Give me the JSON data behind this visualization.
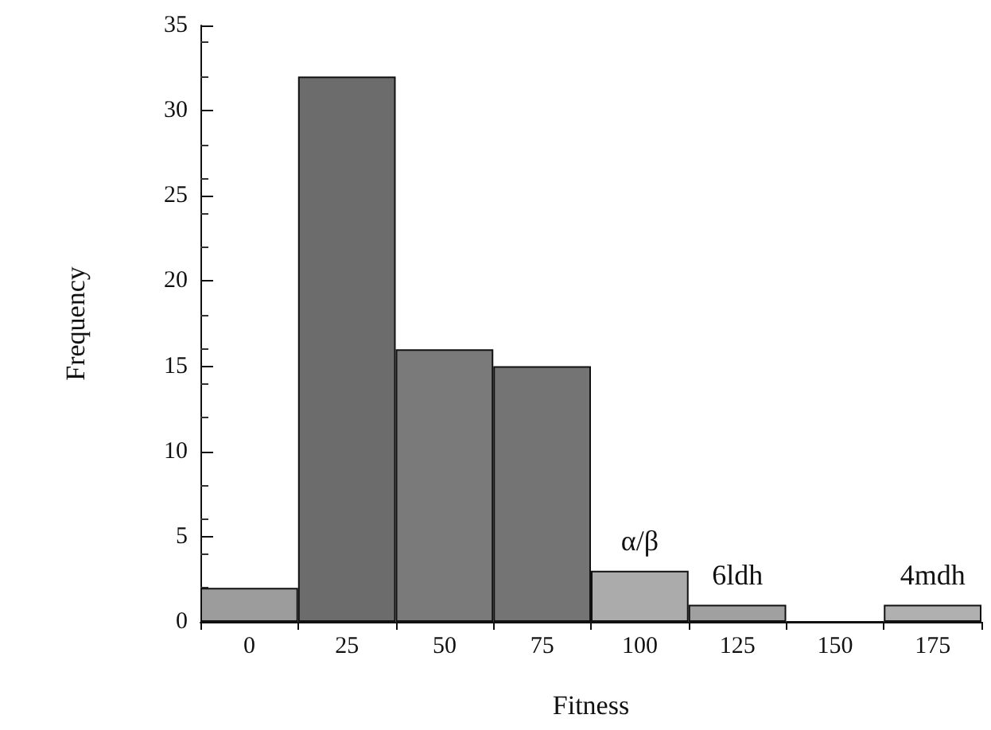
{
  "chart_data": {
    "type": "bar",
    "xlabel": "Fitness",
    "ylabel": "Frequency",
    "categories": [
      "0",
      "25",
      "50",
      "75",
      "100",
      "125",
      "150",
      "175"
    ],
    "values": [
      2,
      32,
      16,
      15,
      3,
      1,
      0,
      1
    ],
    "colors": [
      "#9c9c9c",
      "#6c6c6c",
      "#7a7a7a",
      "#747474",
      "#ababab",
      "#a0a0a0",
      "#a0a0a0",
      "#b0b0b0"
    ],
    "ylim": [
      0,
      35
    ],
    "yticks": [
      0,
      5,
      10,
      15,
      20,
      25,
      30,
      35
    ],
    "annotations": [
      {
        "text": "α/β",
        "x": "100",
        "y": 3
      },
      {
        "text": "6ldh",
        "x": "125",
        "y": 1
      },
      {
        "text": "4mdh",
        "x": "175",
        "y": 1
      }
    ]
  }
}
